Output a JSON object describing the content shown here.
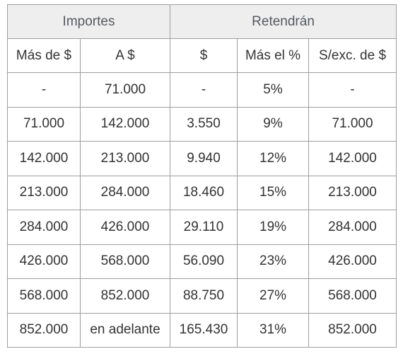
{
  "table": {
    "groups": [
      "Importes",
      "Retendrán"
    ],
    "headers": [
      "Más de $",
      "A $",
      "$",
      "Más el %",
      "S/exc. de $"
    ],
    "rows": [
      [
        "-",
        "71.000",
        "-",
        "5%",
        "-"
      ],
      [
        "71.000",
        "142.000",
        "3.550",
        "9%",
        "71.000"
      ],
      [
        "142.000",
        "213.000",
        "9.940",
        "12%",
        "142.000"
      ],
      [
        "213.000",
        "284.000",
        "18.460",
        "15%",
        "213.000"
      ],
      [
        "284.000",
        "426.000",
        "29.110",
        "19%",
        "284.000"
      ],
      [
        "426.000",
        "568.000",
        "56.090",
        "23%",
        "426.000"
      ],
      [
        "568.000",
        "852.000",
        "88.750",
        "27%",
        "568.000"
      ],
      [
        "852.000",
        "en adelante",
        "165.430",
        "31%",
        "852.000"
      ]
    ]
  }
}
